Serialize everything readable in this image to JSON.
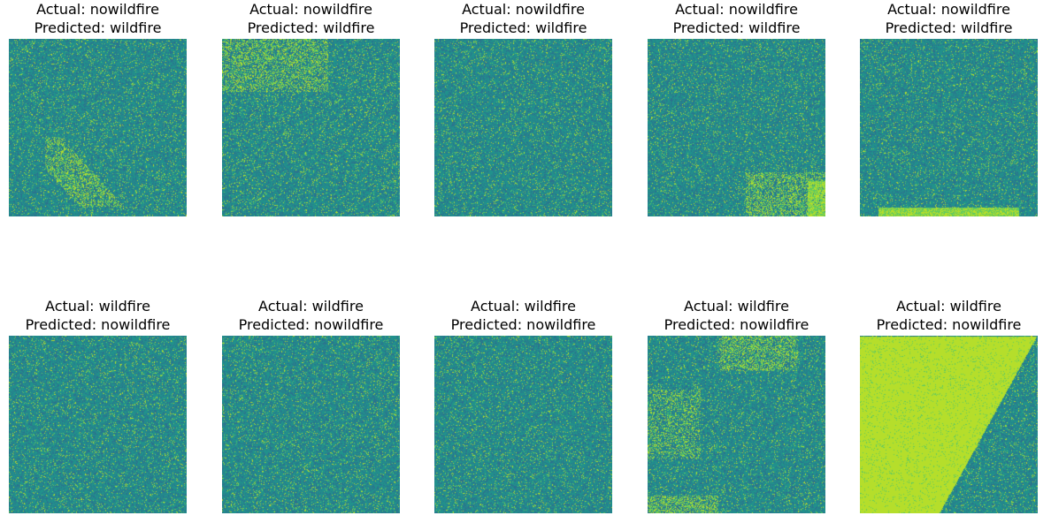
{
  "figure": {
    "panels": [
      {
        "actual": "Actual: nowildfire",
        "predicted": "Predicted: wildfire",
        "image": "satellite-texture-green-patches-center"
      },
      {
        "actual": "Actual: nowildfire",
        "predicted": "Predicted: wildfire",
        "image": "satellite-texture-diagonal-road"
      },
      {
        "actual": "Actual: nowildfire",
        "predicted": "Predicted: wildfire",
        "image": "satellite-texture-uniform-grid"
      },
      {
        "actual": "Actual: nowildfire",
        "predicted": "Predicted: wildfire",
        "image": "satellite-texture-bright-corner-bottom-right"
      },
      {
        "actual": "Actual: nowildfire",
        "predicted": "Predicted: wildfire",
        "image": "satellite-texture-bright-strip-bottom"
      },
      {
        "actual": "Actual: wildfire",
        "predicted": "Predicted: nowildfire",
        "image": "satellite-texture-fine-roads"
      },
      {
        "actual": "Actual: wildfire",
        "predicted": "Predicted: nowildfire",
        "image": "satellite-texture-dense-noise"
      },
      {
        "actual": "Actual: wildfire",
        "predicted": "Predicted: nowildfire",
        "image": "satellite-texture-dense-noise-2"
      },
      {
        "actual": "Actual: wildfire",
        "predicted": "Predicted: nowildfire",
        "image": "satellite-texture-bright-patches-top-and-bottom"
      },
      {
        "actual": "Actual: wildfire",
        "predicted": "Predicted: nowildfire",
        "image": "satellite-texture-bright-region-left"
      }
    ],
    "colors": {
      "base": "#21918c",
      "dark": "#2c728e",
      "light": "#5ec962",
      "bright": "#b5de2b"
    }
  }
}
